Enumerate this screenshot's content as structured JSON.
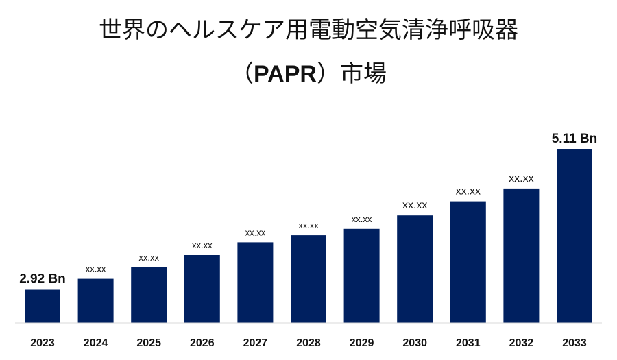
{
  "chart_data": {
    "type": "bar",
    "title_line1": "世界のヘルスケア用電動空気清浄呼吸器",
    "title_line2_open": "（",
    "title_line2_bold": "PAPR",
    "title_line2_close": "）",
    "title_line2_rest": "市場",
    "categories": [
      "2023",
      "2024",
      "2025",
      "2026",
      "2027",
      "2028",
      "2029",
      "2030",
      "2031",
      "2032",
      "2033"
    ],
    "values": [
      2.92,
      3.09,
      3.27,
      3.46,
      3.66,
      3.77,
      3.87,
      4.08,
      4.3,
      4.5,
      5.11
    ],
    "data_labels": [
      "2.92 Bn",
      "xx.xx",
      "xx.xx",
      "xx.xx",
      "xx.xx",
      "xx.xx",
      "xx.xx",
      "xx.xx",
      "xx.xx",
      "xx.xx",
      "5.11 Bn"
    ],
    "label_styles": [
      "big",
      "small",
      "small",
      "small",
      "small",
      "small",
      "small",
      "med",
      "med",
      "med",
      "big"
    ],
    "bar_color": "#002060",
    "ylim": [
      2.4,
      5.4
    ],
    "grid": false,
    "legend": "none",
    "xlabel": "",
    "ylabel": ""
  }
}
